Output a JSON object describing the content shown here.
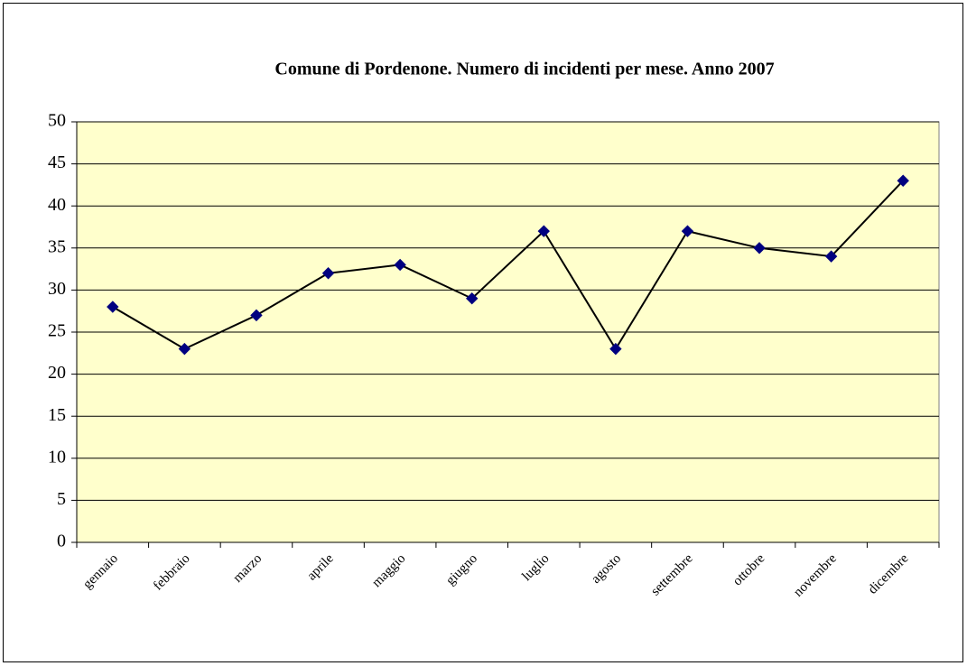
{
  "chart_data": {
    "type": "line",
    "title": "Comune di Pordenone. Numero di incidenti per mese. Anno 2007",
    "categories": [
      "gennaio",
      "febbraio",
      "marzo",
      "aprile",
      "maggio",
      "giugno",
      "luglio",
      "agosto",
      "settembre",
      "ottobre",
      "novembre",
      "dicembre"
    ],
    "series": [
      {
        "name": "incidenti",
        "color": "#000080",
        "values": [
          28,
          23,
          27,
          32,
          33,
          29,
          37,
          23,
          37,
          35,
          34,
          43
        ]
      }
    ],
    "ylim": [
      0,
      50
    ],
    "yticks": [
      0,
      5,
      10,
      15,
      20,
      25,
      30,
      35,
      40,
      45,
      50
    ],
    "grid": true
  }
}
